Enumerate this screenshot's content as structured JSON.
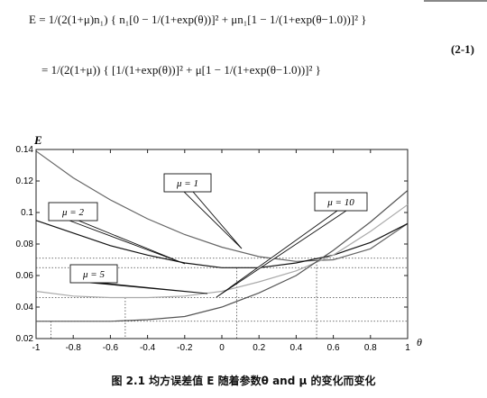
{
  "equation": {
    "line1": "E = 1/(2(1+μ)n₁) { n₁[0 − 1/(1+exp(θ))]² + μn₁[1 − 1/(1+exp(θ−1.0))]² }",
    "line2": "= 1/(2(1+μ)) { [1/(1+exp(θ))]² + μ[1 − 1/(1+exp(θ−1.0))]² }",
    "number": "(2-1)"
  },
  "caption": "图 2.1  均方误差值 E 随着参数θ  and  μ 的变化而变化",
  "chart_data": {
    "type": "line",
    "ylabel": "E",
    "xlabel": "θ",
    "xlim": [
      -1,
      1
    ],
    "ylim": [
      0.02,
      0.14
    ],
    "xticks": [
      "-1",
      "-0.8",
      "-0.6",
      "-0.4",
      "-0.2",
      "0",
      "0.2",
      "0.4",
      "0.6",
      "0.8",
      "1"
    ],
    "yticks": [
      "0.02",
      "0.04",
      "0.06",
      "0.08",
      "0.1",
      "0.12",
      "0.14"
    ],
    "grid": false,
    "x": [
      -1.0,
      -0.8,
      -0.6,
      -0.4,
      -0.2,
      0.0,
      0.2,
      0.4,
      0.6,
      0.8,
      1.0
    ],
    "series": [
      {
        "name": "μ = 1",
        "color": "#666666",
        "values": [
          0.139,
          0.122,
          0.108,
          0.096,
          0.086,
          0.078,
          0.072,
          0.069,
          0.07,
          0.077,
          0.093
        ]
      },
      {
        "name": "μ = 2",
        "color": "#111111",
        "values": [
          0.095,
          0.087,
          0.079,
          0.073,
          0.068,
          0.065,
          0.065,
          0.068,
          0.073,
          0.081,
          0.093
        ]
      },
      {
        "name": "μ = 5",
        "color": "#aaaaaa",
        "values": [
          0.05,
          0.047,
          0.046,
          0.046,
          0.047,
          0.05,
          0.056,
          0.063,
          0.073,
          0.088,
          0.105
        ]
      },
      {
        "name": "μ = 10",
        "color": "#555555",
        "values": [
          0.031,
          0.031,
          0.031,
          0.032,
          0.034,
          0.04,
          0.049,
          0.06,
          0.076,
          0.094,
          0.114
        ]
      }
    ],
    "hlines": [
      0.071,
      0.065,
      0.046,
      0.031
    ],
    "vlines": [
      0.51,
      0.08,
      -0.52,
      -0.92
    ],
    "annotations": [
      "μ = 1",
      "μ = 2",
      "μ = 5",
      "μ = 10"
    ]
  }
}
